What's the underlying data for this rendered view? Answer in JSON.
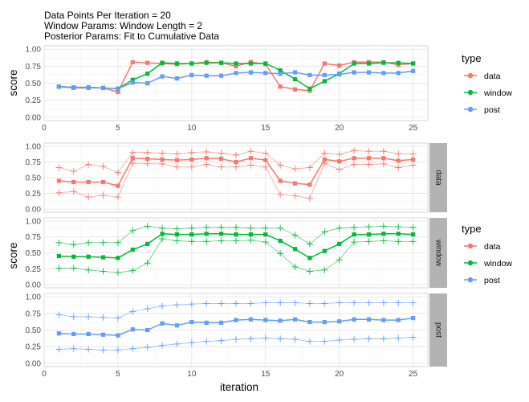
{
  "title_lines": [
    "Data Points Per Iteration = 20",
    "Window Params:  Window Length = 2",
    "Posterior Params: Fit to Cumulative Data"
  ],
  "colors": {
    "data": "#F8766D",
    "window": "#00BA38",
    "post": "#619CFF"
  },
  "chart_data": [
    {
      "type": "line",
      "xlabel": "iteration",
      "ylabel": "score",
      "xlim": [
        0,
        26
      ],
      "ylim": [
        -0.05,
        1.05
      ],
      "xticks": [
        "0",
        "5",
        "10",
        "15",
        "20",
        "25"
      ],
      "yticks": [
        "0.00",
        "0.25",
        "0.50",
        "0.75",
        "1.00"
      ],
      "grid": true,
      "legend_title": "type",
      "legend_position": "right",
      "x": [
        1,
        2,
        3,
        4,
        5,
        6,
        7,
        8,
        9,
        10,
        11,
        12,
        13,
        14,
        15,
        16,
        17,
        18,
        19,
        20,
        21,
        22,
        23,
        24,
        25
      ],
      "series": [
        {
          "name": "data",
          "values": [
            0.45,
            0.43,
            0.43,
            0.43,
            0.37,
            0.81,
            0.8,
            0.79,
            0.78,
            0.79,
            0.81,
            0.8,
            0.75,
            0.81,
            0.78,
            0.45,
            0.41,
            0.39,
            0.79,
            0.76,
            0.81,
            0.81,
            0.81,
            0.77,
            0.79
          ]
        },
        {
          "name": "window",
          "values": [
            0.45,
            0.44,
            0.44,
            0.43,
            0.42,
            0.55,
            0.64,
            0.8,
            0.79,
            0.79,
            0.8,
            0.8,
            0.79,
            0.79,
            0.79,
            0.69,
            0.56,
            0.42,
            0.53,
            0.64,
            0.79,
            0.79,
            0.8,
            0.8,
            0.79
          ]
        },
        {
          "name": "post",
          "values": [
            0.45,
            0.44,
            0.44,
            0.43,
            0.42,
            0.51,
            0.5,
            0.6,
            0.57,
            0.62,
            0.61,
            0.61,
            0.65,
            0.66,
            0.65,
            0.64,
            0.66,
            0.62,
            0.62,
            0.63,
            0.66,
            0.66,
            0.65,
            0.65,
            0.68
          ]
        }
      ]
    },
    {
      "type": "line",
      "facets": [
        "data",
        "window",
        "post"
      ],
      "xlabel": "iteration",
      "ylabel": "score",
      "xlim": [
        0,
        26
      ],
      "ylim": [
        -0.05,
        1.05
      ],
      "xticks": [
        "0",
        "5",
        "10",
        "15",
        "20",
        "25"
      ],
      "yticks": [
        "0.00",
        "0.25",
        "0.50",
        "0.75",
        "1.00"
      ],
      "grid": true,
      "legend_title": "type",
      "legend_position": "right",
      "x": [
        1,
        2,
        3,
        4,
        5,
        6,
        7,
        8,
        9,
        10,
        11,
        12,
        13,
        14,
        15,
        16,
        17,
        18,
        19,
        20,
        21,
        22,
        23,
        24,
        25
      ],
      "series": [
        {
          "name": "data",
          "values": [
            0.45,
            0.43,
            0.43,
            0.43,
            0.37,
            0.81,
            0.8,
            0.79,
            0.78,
            0.79,
            0.81,
            0.8,
            0.75,
            0.81,
            0.78,
            0.45,
            0.41,
            0.39,
            0.79,
            0.76,
            0.81,
            0.81,
            0.81,
            0.77,
            0.79
          ],
          "upper": [
            0.66,
            0.6,
            0.71,
            0.68,
            0.58,
            0.9,
            0.9,
            0.89,
            0.88,
            0.9,
            0.91,
            0.89,
            0.86,
            0.92,
            0.89,
            0.7,
            0.64,
            0.66,
            0.89,
            0.87,
            0.93,
            0.92,
            0.92,
            0.88,
            0.88
          ],
          "lower": [
            0.26,
            0.28,
            0.19,
            0.22,
            0.19,
            0.73,
            0.72,
            0.72,
            0.67,
            0.67,
            0.71,
            0.67,
            0.67,
            0.7,
            0.67,
            0.23,
            0.21,
            0.17,
            0.73,
            0.63,
            0.71,
            0.71,
            0.72,
            0.66,
            0.7
          ]
        },
        {
          "name": "window",
          "values": [
            0.45,
            0.44,
            0.44,
            0.43,
            0.42,
            0.55,
            0.64,
            0.8,
            0.79,
            0.79,
            0.8,
            0.8,
            0.79,
            0.79,
            0.79,
            0.69,
            0.56,
            0.42,
            0.53,
            0.64,
            0.79,
            0.79,
            0.8,
            0.8,
            0.79
          ],
          "upper": [
            0.66,
            0.63,
            0.66,
            0.66,
            0.66,
            0.85,
            0.92,
            0.89,
            0.88,
            0.89,
            0.9,
            0.9,
            0.9,
            0.89,
            0.89,
            0.89,
            0.78,
            0.64,
            0.83,
            0.89,
            0.9,
            0.91,
            0.92,
            0.91,
            0.9
          ],
          "lower": [
            0.26,
            0.26,
            0.23,
            0.21,
            0.19,
            0.22,
            0.34,
            0.72,
            0.69,
            0.68,
            0.68,
            0.69,
            0.69,
            0.7,
            0.67,
            0.49,
            0.28,
            0.21,
            0.23,
            0.39,
            0.67,
            0.68,
            0.69,
            0.68,
            0.68
          ]
        },
        {
          "name": "post",
          "values": [
            0.45,
            0.44,
            0.44,
            0.43,
            0.42,
            0.51,
            0.5,
            0.6,
            0.57,
            0.62,
            0.61,
            0.61,
            0.65,
            0.66,
            0.65,
            0.64,
            0.66,
            0.62,
            0.62,
            0.63,
            0.66,
            0.66,
            0.65,
            0.65,
            0.68
          ],
          "upper": [
            0.73,
            0.7,
            0.7,
            0.69,
            0.68,
            0.78,
            0.82,
            0.86,
            0.88,
            0.89,
            0.9,
            0.9,
            0.9,
            0.9,
            0.91,
            0.91,
            0.91,
            0.9,
            0.9,
            0.91,
            0.91,
            0.91,
            0.91,
            0.91,
            0.91
          ],
          "lower": [
            0.21,
            0.22,
            0.21,
            0.2,
            0.2,
            0.22,
            0.24,
            0.27,
            0.29,
            0.31,
            0.33,
            0.34,
            0.36,
            0.37,
            0.38,
            0.37,
            0.36,
            0.33,
            0.33,
            0.35,
            0.36,
            0.37,
            0.37,
            0.38,
            0.39
          ]
        }
      ]
    }
  ]
}
